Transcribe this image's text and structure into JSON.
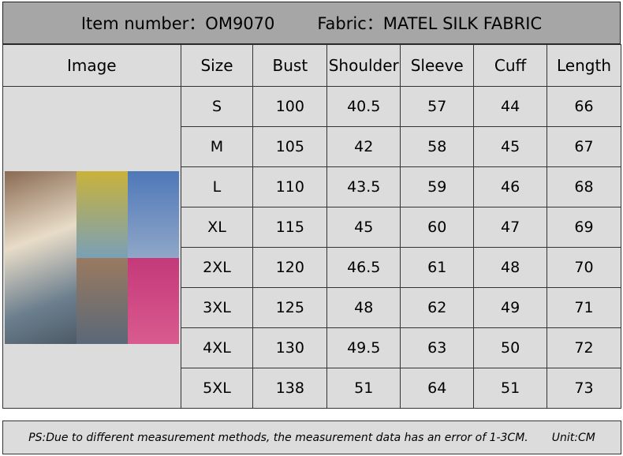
{
  "header": {
    "item_number": "Item number：OM9070",
    "fabric": "Fabric：MATEL SILK FABRIC"
  },
  "columns": [
    "Image",
    "Size",
    "Bust",
    "Shoulder",
    "Sleeve",
    "Cuff",
    "Length"
  ],
  "rows": [
    [
      "S",
      "100",
      "40.5",
      "57",
      "44",
      "66"
    ],
    [
      "M",
      "105",
      "42",
      "58",
      "45",
      "67"
    ],
    [
      "L",
      "110",
      "43.5",
      "59",
      "46",
      "68"
    ],
    [
      "XL",
      "115",
      "45",
      "60",
      "47",
      "69"
    ],
    [
      "2XL",
      "120",
      "46.5",
      "61",
      "48",
      "70"
    ],
    [
      "3XL",
      "125",
      "48",
      "62",
      "49",
      "71"
    ],
    [
      "4XL",
      "130",
      "49.5",
      "63",
      "50",
      "72"
    ],
    [
      "5XL",
      "138",
      "51",
      "64",
      "51",
      "73"
    ]
  ],
  "footer": {
    "note": "PS:Due to different measurement methods, the measurement data has an error of 1-3CM.",
    "unit": "Unit:CM"
  },
  "colors": {
    "title_bg": "#a6a6a6",
    "cell_bg": "#dcdcdc"
  }
}
